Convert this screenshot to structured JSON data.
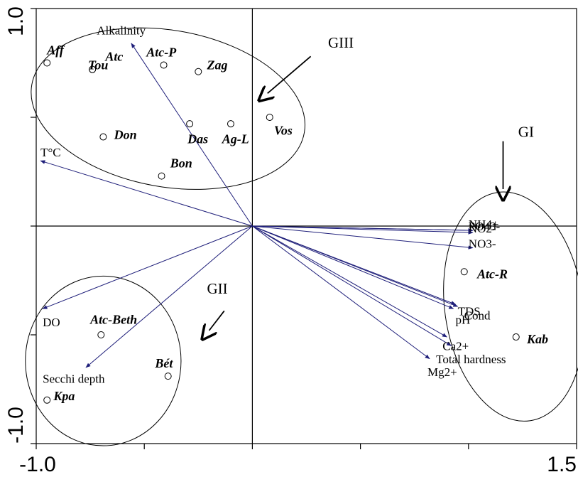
{
  "chart_data": {
    "type": "scatter",
    "subtype": "biplot",
    "title": "",
    "xlabel": "",
    "ylabel": "",
    "xlim": [
      -1.0,
      1.5
    ],
    "ylim": [
      -1.0,
      1.0
    ],
    "x_tick_labels": [
      {
        "value": -1.0,
        "label": "-1.0"
      },
      {
        "value": 1.5,
        "label": "1.5"
      }
    ],
    "y_tick_labels": [
      {
        "value": 1.0,
        "label": "1.0"
      },
      {
        "value": -1.0,
        "label": "-1.0"
      }
    ],
    "x_minor_ticks": [
      -1.0,
      -0.5,
      0.0,
      0.5,
      1.0,
      1.5
    ],
    "y_minor_ticks": [
      -1.0,
      -0.5,
      0.0,
      0.5,
      1.0
    ],
    "zero_lines": true,
    "arrow_color": "#1f1f7a",
    "variables": [
      {
        "label": "Alkalinity",
        "x": -0.56,
        "y": 0.84,
        "label_x": -0.72,
        "label_y": 0.88
      },
      {
        "label": "T°C",
        "x": -0.98,
        "y": 0.3,
        "label_x": -0.98,
        "label_y": 0.32
      },
      {
        "label": "DO",
        "x": -0.97,
        "y": -0.38,
        "label_x": -0.97,
        "label_y": -0.46
      },
      {
        "label": "Secchi depth",
        "x": -0.77,
        "y": -0.65,
        "label_x": -0.97,
        "label_y": -0.72
      },
      {
        "label": "NH4+",
        "x": 1.02,
        "y": -0.02,
        "label_x": 1.0,
        "label_y": -0.01
      },
      {
        "label": "NO2-",
        "x": 1.02,
        "y": -0.03,
        "label_x": 1.0,
        "label_y": -0.03
      },
      {
        "label": "PO43-",
        "x": 1.02,
        "y": -0.02,
        "label_x": 1.0,
        "label_y": -0.02
      },
      {
        "label": "NO3-",
        "x": 1.02,
        "y": -0.1,
        "label_x": 1.0,
        "label_y": -0.1
      },
      {
        "label": "TDS",
        "x": 0.94,
        "y": -0.36,
        "label_x": 0.95,
        "label_y": -0.41
      },
      {
        "label": "Cond",
        "x": 0.95,
        "y": -0.37,
        "label_x": 0.98,
        "label_y": -0.43
      },
      {
        "label": "pH",
        "x": 0.93,
        "y": -0.38,
        "label_x": 0.94,
        "label_y": -0.45
      },
      {
        "label": "Ca2+",
        "x": 0.9,
        "y": -0.51,
        "label_x": 0.88,
        "label_y": -0.57
      },
      {
        "label": "Total hardness",
        "x": 0.92,
        "y": -0.55,
        "label_x": 0.85,
        "label_y": -0.63
      },
      {
        "label": "Mg2+",
        "x": 0.82,
        "y": -0.61,
        "label_x": 0.81,
        "label_y": -0.69
      }
    ],
    "sites": [
      {
        "label": "Aff",
        "x": -0.95,
        "y": 0.75,
        "label_x": -0.95,
        "label_y": 0.79
      },
      {
        "label": "Tou",
        "x": -0.74,
        "y": 0.72,
        "label_x": -0.76,
        "label_y": 0.72
      },
      {
        "label": "Atc",
        "x": -0.74,
        "y": 0.72,
        "label_x": -0.68,
        "label_y": 0.76
      },
      {
        "label": "Atc-P",
        "x": -0.41,
        "y": 0.74,
        "label_x": -0.49,
        "label_y": 0.78
      },
      {
        "label": "Zag",
        "x": -0.25,
        "y": 0.71,
        "label_x": -0.21,
        "label_y": 0.72
      },
      {
        "label": "Das",
        "x": -0.29,
        "y": 0.47,
        "label_x": -0.3,
        "label_y": 0.38
      },
      {
        "label": "Ag-L",
        "x": -0.1,
        "y": 0.47,
        "label_x": -0.14,
        "label_y": 0.38
      },
      {
        "label": "Vos",
        "x": 0.08,
        "y": 0.5,
        "label_x": 0.1,
        "label_y": 0.42
      },
      {
        "label": "Don",
        "x": -0.69,
        "y": 0.41,
        "label_x": -0.64,
        "label_y": 0.4
      },
      {
        "label": "Bon",
        "x": -0.42,
        "y": 0.23,
        "label_x": -0.38,
        "label_y": 0.27
      },
      {
        "label": "Atc-R",
        "x": 0.98,
        "y": -0.21,
        "label_x": 1.04,
        "label_y": -0.24
      },
      {
        "label": "Kab",
        "x": 1.22,
        "y": -0.51,
        "label_x": 1.27,
        "label_y": -0.54
      },
      {
        "label": "Atc-Beth",
        "x": -0.7,
        "y": -0.5,
        "label_x": -0.75,
        "label_y": -0.45
      },
      {
        "label": "Bét",
        "x": -0.39,
        "y": -0.69,
        "label_x": -0.45,
        "label_y": -0.65
      },
      {
        "label": "Kpa",
        "x": -0.95,
        "y": -0.8,
        "label_x": -0.92,
        "label_y": -0.8
      }
    ],
    "groups": [
      {
        "label": "GIII",
        "cx": -0.39,
        "cy": 0.54,
        "rx": 0.64,
        "ry": 0.36,
        "rotate": 10,
        "label_x": 0.35,
        "label_y": 0.82,
        "arrow_from": [
          0.27,
          0.78
        ],
        "arrow_to": [
          0.07,
          0.61
        ]
      },
      {
        "label": "GI",
        "cx": 1.21,
        "cy": -0.37,
        "rx": 0.32,
        "ry": 0.53,
        "rotate": -8,
        "label_x": 1.23,
        "label_y": 0.41,
        "arrow_from": [
          1.16,
          0.39
        ],
        "arrow_to": [
          1.16,
          0.17
        ]
      },
      {
        "label": "GII",
        "cx": -0.69,
        "cy": -0.62,
        "rx": 0.36,
        "ry": 0.39,
        "rotate": 0,
        "label_x": -0.21,
        "label_y": -0.31,
        "arrow_from": [
          -0.13,
          -0.39
        ],
        "arrow_to": [
          -0.2,
          -0.48
        ]
      }
    ]
  }
}
